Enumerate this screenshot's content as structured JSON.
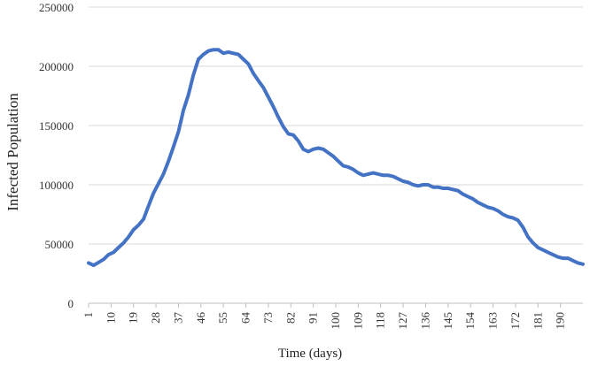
{
  "chart_data": {
    "type": "line",
    "title": "",
    "xlabel": "Time (days)",
    "ylabel": "Infected Population",
    "ylim": [
      0,
      250000
    ],
    "xlim": [
      1,
      199
    ],
    "yticks": [
      0,
      50000,
      100000,
      150000,
      200000,
      250000
    ],
    "ytick_labels": [
      "0",
      "50000",
      "100000",
      "150000",
      "200000",
      "250000"
    ],
    "xticks": [
      1,
      10,
      19,
      28,
      37,
      46,
      55,
      64,
      73,
      82,
      91,
      100,
      109,
      118,
      127,
      136,
      145,
      154,
      163,
      172,
      181,
      190
    ],
    "xtick_labels": [
      "1",
      "10",
      "19",
      "28",
      "37",
      "46",
      "55",
      "64",
      "73",
      "82",
      "91",
      "100",
      "109",
      "118",
      "127",
      "136",
      "145",
      "154",
      "163",
      "172",
      "181",
      "190"
    ],
    "grid": true,
    "legend": "none",
    "series_color": "#4472c4",
    "series": [
      {
        "x": [
          1,
          3,
          5,
          7,
          9,
          11,
          13,
          15,
          17,
          19,
          21,
          23,
          25,
          27,
          29,
          31,
          33,
          35,
          37,
          39,
          41,
          43,
          45,
          47,
          49,
          51,
          53,
          55,
          57,
          59,
          61,
          63,
          65,
          67,
          69,
          71,
          73,
          75,
          77,
          79,
          81,
          83,
          85,
          87,
          89,
          91,
          93,
          95,
          97,
          99,
          101,
          103,
          105,
          107,
          109,
          111,
          113,
          115,
          117,
          119,
          121,
          123,
          125,
          127,
          129,
          131,
          133,
          135,
          137,
          139,
          141,
          143,
          145,
          147,
          149,
          151,
          153,
          155,
          157,
          159,
          161,
          163,
          165,
          167,
          169,
          171,
          173,
          175,
          177,
          179,
          181,
          183,
          185,
          187,
          189,
          191,
          193,
          195,
          197,
          199
        ],
        "values": [
          34000,
          32000,
          34500,
          37000,
          41000,
          43000,
          47000,
          51000,
          56000,
          62000,
          66000,
          71000,
          82000,
          93000,
          101000,
          109000,
          120000,
          132000,
          145000,
          163000,
          176000,
          193000,
          206000,
          210000,
          213000,
          214000,
          214000,
          211000,
          212000,
          211000,
          210000,
          206000,
          202000,
          194000,
          188000,
          182000,
          174000,
          166000,
          157000,
          149000,
          143000,
          142000,
          137000,
          130000,
          128000,
          130000,
          131000,
          130000,
          127000,
          124000,
          120000,
          116000,
          115000,
          113000,
          110000,
          108000,
          109000,
          110000,
          109000,
          108000,
          108000,
          107000,
          105000,
          103000,
          102000,
          100000,
          99000,
          100000,
          100000,
          98000,
          98000,
          97000,
          97000,
          96000,
          95000,
          92000,
          90000,
          88000,
          85000,
          83000,
          81000,
          80000,
          78000,
          75000,
          73000,
          72000,
          70000,
          64000,
          56000,
          51000,
          47000,
          45000,
          43000,
          41000,
          39000,
          38000,
          38000,
          36000,
          34000,
          33000
        ]
      }
    ]
  }
}
